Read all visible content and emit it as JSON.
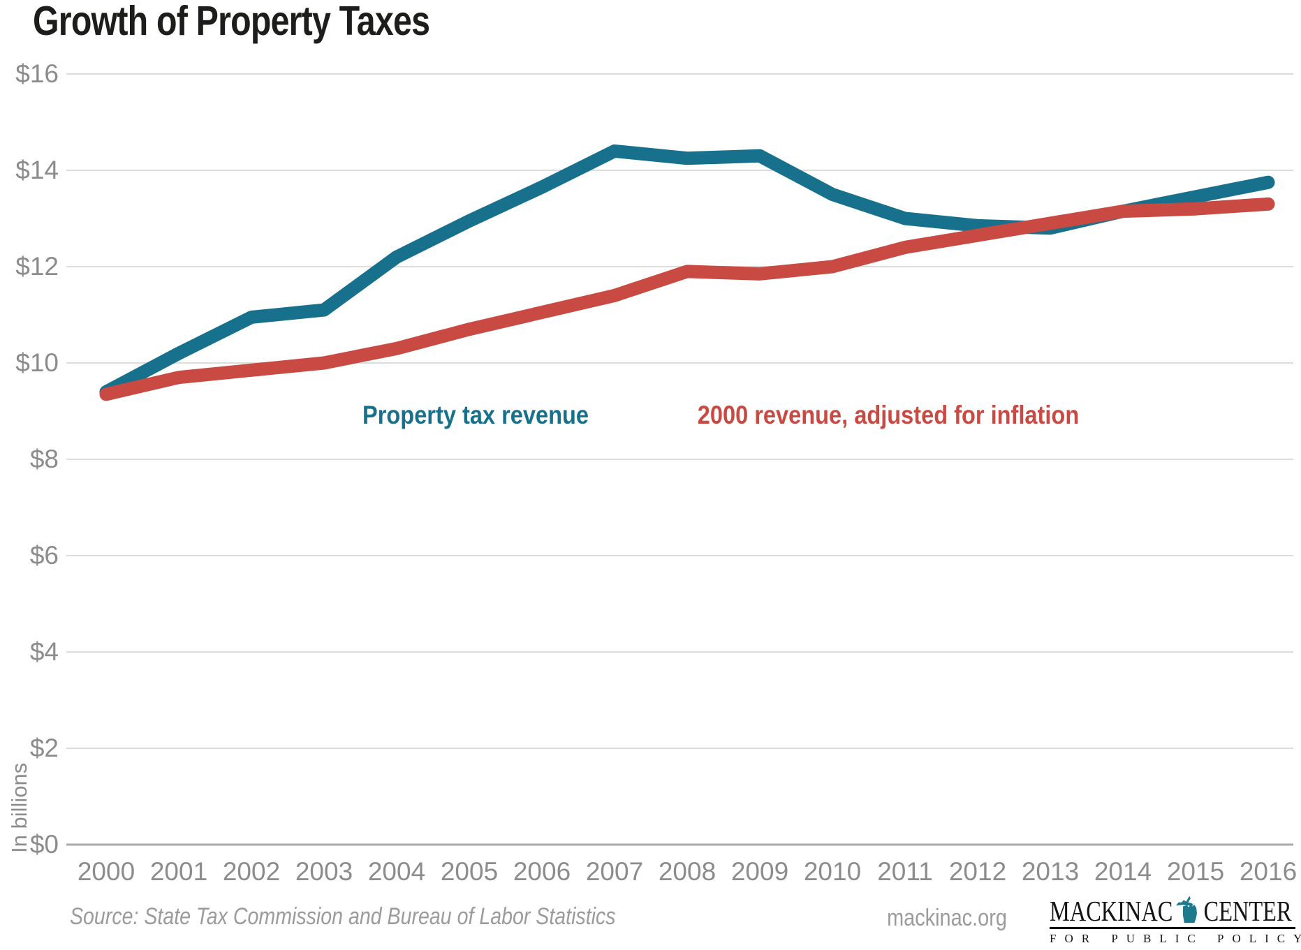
{
  "title": "Growth of Property Taxes",
  "y_axis_label": "In billions",
  "footer": {
    "source": "Source: State Tax Commission and Bureau of Labor Statistics",
    "website": "mackinac.org"
  },
  "logo": {
    "name": "Mackinac Center for Public Policy",
    "word_left": "MACKINAC",
    "word_right": "CENTER",
    "tagline": "FOR PUBLIC POLICY",
    "michigan_icon": "michigan-state-silhouette",
    "icon_color": "#1d7a8c",
    "text_color": "#131313"
  },
  "colors": {
    "property_tax_line": "#17708c",
    "inflation_line": "#c94a42",
    "title_text": "#1d1d1b",
    "axis_text": "#8c8c8c",
    "footer_text": "#9b9b9b",
    "gridline": "#dcdcdc",
    "baseline": "#aaaaaa",
    "background": "#ffffff"
  },
  "chart_data": {
    "type": "line",
    "title": "Growth of Property Taxes",
    "xlabel": "",
    "ylabel": "In billions",
    "units": "USD billions",
    "grid": true,
    "legend_position": "inline-labels-near-lines",
    "ylim": [
      0,
      16
    ],
    "x": [
      2000,
      2001,
      2002,
      2003,
      2004,
      2005,
      2006,
      2007,
      2008,
      2009,
      2010,
      2011,
      2012,
      2013,
      2014,
      2015,
      2016
    ],
    "y_ticks": [
      {
        "label": "$0",
        "value": 0
      },
      {
        "label": "$2",
        "value": 2
      },
      {
        "label": "$4",
        "value": 4
      },
      {
        "label": "$6",
        "value": 6
      },
      {
        "label": "$8",
        "value": 8
      },
      {
        "label": "$10",
        "value": 10
      },
      {
        "label": "$12",
        "value": 12
      },
      {
        "label": "$14",
        "value": 14
      },
      {
        "label": "$16",
        "value": 16
      }
    ],
    "series": [
      {
        "name": "Property tax revenue",
        "slug": "property-tax-revenue",
        "color": "#17708c",
        "values": [
          9.4,
          10.2,
          10.95,
          11.1,
          12.2,
          12.95,
          13.65,
          14.4,
          14.25,
          14.3,
          13.5,
          13.0,
          12.85,
          12.8,
          13.15,
          13.45,
          13.75
        ]
      },
      {
        "name": "2000 revenue, adjusted for inflation",
        "slug": "inflation-adjusted-2000-revenue",
        "color": "#c94a42",
        "values": [
          9.35,
          9.7,
          9.85,
          10.0,
          10.3,
          10.7,
          11.05,
          11.4,
          11.9,
          11.85,
          12.0,
          12.4,
          12.65,
          12.9,
          13.15,
          13.2,
          13.3
        ]
      }
    ]
  }
}
